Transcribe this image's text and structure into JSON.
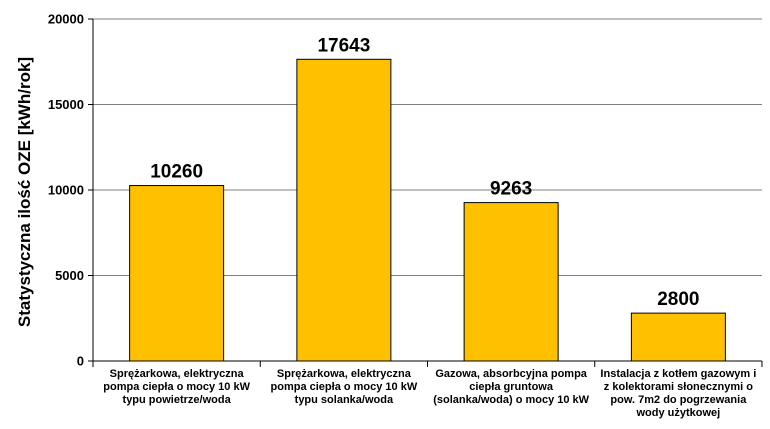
{
  "chart_data": {
    "type": "bar",
    "title": "",
    "xlabel": "",
    "ylabel": "Statystyczna ilość OZE [kWh/rok]",
    "ylim": [
      0,
      20000
    ],
    "yticks": [
      "0",
      "5000",
      "10000",
      "15000",
      "20000"
    ],
    "grid": true,
    "legend": "none",
    "bar_color": "#FFC000",
    "categories": [
      [
        "Sprężarkowa, elektryczna",
        "pompa ciepła o mocy 10 kW",
        "typu powietrze/woda"
      ],
      [
        "Sprężarkowa, elektryczna",
        "pompa ciepła o mocy 10 kW",
        "typu solanka/woda"
      ],
      [
        "Gazowa, absorbcyjna pompa",
        "ciepła gruntowa",
        "(solanka/woda) o mocy 10 kW"
      ],
      [
        "Instalacja z kotłem gazowym i",
        "z kolektorami słonecznymi o",
        "pow. 7m2 do pogrzewania",
        "wody użytkowej"
      ]
    ],
    "values": [
      10260,
      17643,
      9263,
      2800
    ],
    "data_labels": [
      "10260",
      "17643",
      "9263",
      "2800"
    ]
  }
}
